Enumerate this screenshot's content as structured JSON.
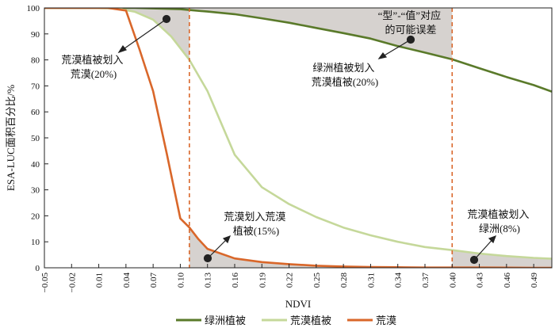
{
  "chart_data": {
    "type": "line",
    "xlabel": "NDVI",
    "ylabel": "ESA-LUC面积百分比/%",
    "ylim": [
      0,
      100
    ],
    "xlim": [
      -0.05,
      0.51
    ],
    "x_tick_labels": [
      "−0.05",
      "−0.02",
      "0.01",
      "0.04",
      "0.07",
      "0.10",
      "0.13",
      "0.16",
      "0.19",
      "0.22",
      "0.25",
      "0.28",
      "0.31",
      "0.34",
      "0.37",
      "0.40",
      "0.43",
      "0.46",
      "0.49"
    ],
    "y_tick_labels": [
      "0",
      "10",
      "20",
      "30",
      "40",
      "50",
      "60",
      "70",
      "80",
      "90",
      "100"
    ],
    "thresholds": [
      0.11,
      0.4
    ],
    "series": [
      {
        "name": "绿洲植被",
        "color": "#5a7a2a",
        "x": [
          -0.05,
          0.0,
          0.05,
          0.1,
          0.13,
          0.16,
          0.19,
          0.22,
          0.25,
          0.28,
          0.31,
          0.34,
          0.37,
          0.4,
          0.43,
          0.46,
          0.49,
          0.51
        ],
        "y": [
          100,
          100,
          100,
          99.5,
          98.6,
          97.6,
          96.0,
          94.3,
          92.3,
          90.3,
          88.2,
          85.3,
          82.8,
          80.2,
          76.8,
          73.4,
          70.3,
          67.8
        ]
      },
      {
        "name": "荒漠植被",
        "color": "#c5d89a",
        "x": [
          -0.05,
          0.0,
          0.03,
          0.05,
          0.07,
          0.09,
          0.11,
          0.13,
          0.16,
          0.19,
          0.22,
          0.25,
          0.28,
          0.31,
          0.34,
          0.37,
          0.4,
          0.43,
          0.46,
          0.49,
          0.51
        ],
        "y": [
          100,
          100,
          99.8,
          98.5,
          95.5,
          89.0,
          80.0,
          68.0,
          43.5,
          31.0,
          24.5,
          19.5,
          15.5,
          12.5,
          10.0,
          8.0,
          6.8,
          5.5,
          4.5,
          3.8,
          3.5
        ]
      },
      {
        "name": "荒漠",
        "color": "#d9672a",
        "x": [
          -0.05,
          0.0,
          0.02,
          0.04,
          0.055,
          0.07,
          0.085,
          0.1,
          0.11,
          0.12,
          0.13,
          0.16,
          0.19,
          0.22,
          0.25,
          0.28,
          0.31,
          0.34,
          0.37,
          0.4,
          0.43,
          0.46,
          0.49,
          0.51
        ],
        "y": [
          100,
          100,
          100,
          99.0,
          84.0,
          68.0,
          44.0,
          19.0,
          15.5,
          11.0,
          7.3,
          3.6,
          2.2,
          1.4,
          0.8,
          0.5,
          0.3,
          0.2,
          0.1,
          0.1,
          0.1,
          0.05,
          0.0,
          0.0
        ]
      }
    ],
    "annotations": [
      {
        "lines": [
          "荒漠植被划入",
          "荒漠(20%)"
        ]
      },
      {
        "lines": [
          "荒漠划入荒漠",
          "植被(15%)"
        ]
      },
      {
        "lines": [
          "“型”-“值”对应",
          "的可能误差"
        ]
      },
      {
        "lines": [
          "绿洲植被划入",
          "荒漠植被(20%)"
        ]
      },
      {
        "lines": [
          "荒漠植被划入",
          "绿洲(8%)"
        ]
      }
    ]
  }
}
